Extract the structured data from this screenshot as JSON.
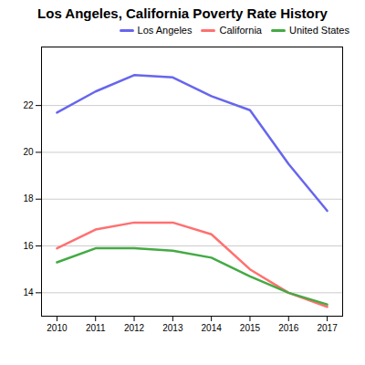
{
  "chart_data": {
    "type": "line",
    "title": "Los Angeles, California Poverty Rate History",
    "x": [
      2010,
      2011,
      2012,
      2013,
      2014,
      2015,
      2016,
      2017
    ],
    "series": [
      {
        "name": "Los Angeles",
        "color": "#6666ee",
        "values": [
          21.7,
          22.6,
          23.3,
          23.2,
          22.4,
          21.8,
          19.5,
          17.5
        ]
      },
      {
        "name": "California",
        "color": "#ff7070",
        "values": [
          15.9,
          16.7,
          17.0,
          17.0,
          16.5,
          15.0,
          14.0,
          13.4
        ]
      },
      {
        "name": "United States",
        "color": "#44aa44",
        "values": [
          15.3,
          15.9,
          15.9,
          15.8,
          15.5,
          14.7,
          14.0,
          13.5
        ]
      }
    ],
    "xlim": [
      2009.6,
      2017.4
    ],
    "xticks": [
      2010,
      2011,
      2012,
      2013,
      2014,
      2015,
      2016,
      2017
    ],
    "ylim": [
      13.0,
      24.5
    ],
    "yticks": [
      14,
      16,
      18,
      20,
      22
    ],
    "grid": "y",
    "legend": "upper right"
  }
}
